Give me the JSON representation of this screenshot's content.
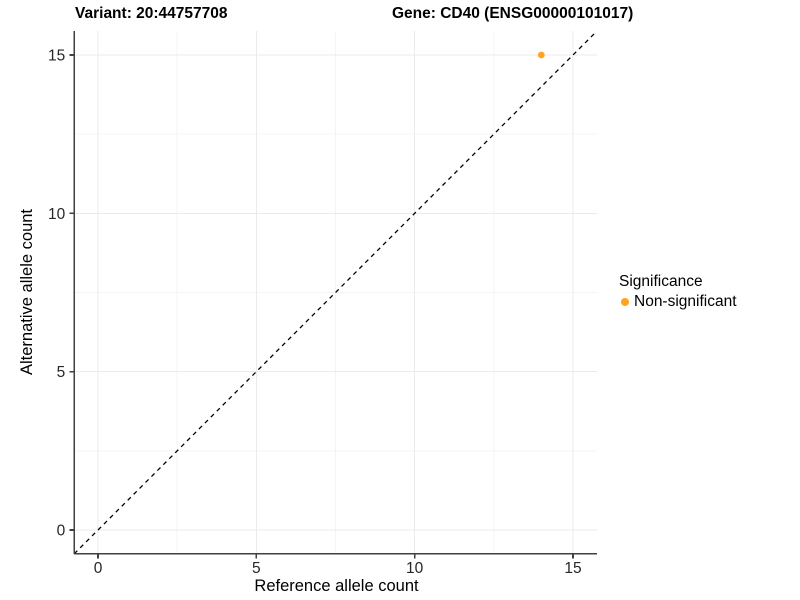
{
  "titles": {
    "variant": "Variant: 20:44757708",
    "gene": "Gene: CD40 (ENSG00000101017)"
  },
  "legend": {
    "title": "Significance",
    "items": [
      {
        "label": "Non-significant",
        "color": "#FFA320"
      }
    ]
  },
  "chart_data": {
    "type": "scatter",
    "title_left": "Variant: 20:44757708",
    "title_right": "Gene: CD40 (ENSG00000101017)",
    "xlabel": "Reference allele count",
    "ylabel": "Alternative allele count",
    "xlim": [
      -0.75,
      15.75
    ],
    "ylim": [
      -0.75,
      15.75
    ],
    "xticks": [
      0,
      5,
      10,
      15
    ],
    "yticks": [
      0,
      5,
      10,
      15
    ],
    "minor_xticks": [
      2.5,
      7.5,
      12.5
    ],
    "minor_yticks": [
      2.5,
      7.5,
      12.5
    ],
    "grid": true,
    "legend_position": "right",
    "identity_line": {
      "slope": 1,
      "intercept": 0,
      "style": "dashed",
      "color": "#000000"
    },
    "series": [
      {
        "name": "Non-significant",
        "color": "#FFA320",
        "points": [
          {
            "x": 14,
            "y": 15
          }
        ]
      }
    ]
  },
  "colors": {
    "point_orange": "#FFA320",
    "axis_line": "#404040",
    "tick_text": "#262626",
    "grid_major": "#ebebeb",
    "grid_minor": "#f4f4f4"
  }
}
